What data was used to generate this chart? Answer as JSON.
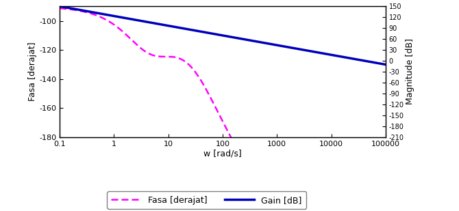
{
  "xlabel": "w [rad/s]",
  "ylabel_left": "Fasa [derajat]",
  "ylabel_right": "Magnitude [dB]",
  "ylim_left": [
    -180,
    -90
  ],
  "ylim_right": [
    -210,
    150
  ],
  "yticks_left": [
    -180,
    -160,
    -140,
    -120,
    -100
  ],
  "yticks_right": [
    150,
    120,
    90,
    60,
    30,
    0,
    -30,
    -60,
    -90,
    -120,
    -150,
    -180,
    -210
  ],
  "xlim": [
    0.1,
    100000
  ],
  "phase_color": "#FF00FF",
  "gain_color": "#0000BB",
  "legend_fasa": "Fasa [derajat]",
  "legend_gain": "Gain [dB]",
  "background_color": "#FFFFFF",
  "xtick_labels": [
    "0.1",
    "1",
    "10",
    "100",
    "1000",
    "10000",
    "100000"
  ],
  "xtick_values": [
    0.1,
    1,
    10,
    100,
    1000,
    10000,
    100000
  ]
}
